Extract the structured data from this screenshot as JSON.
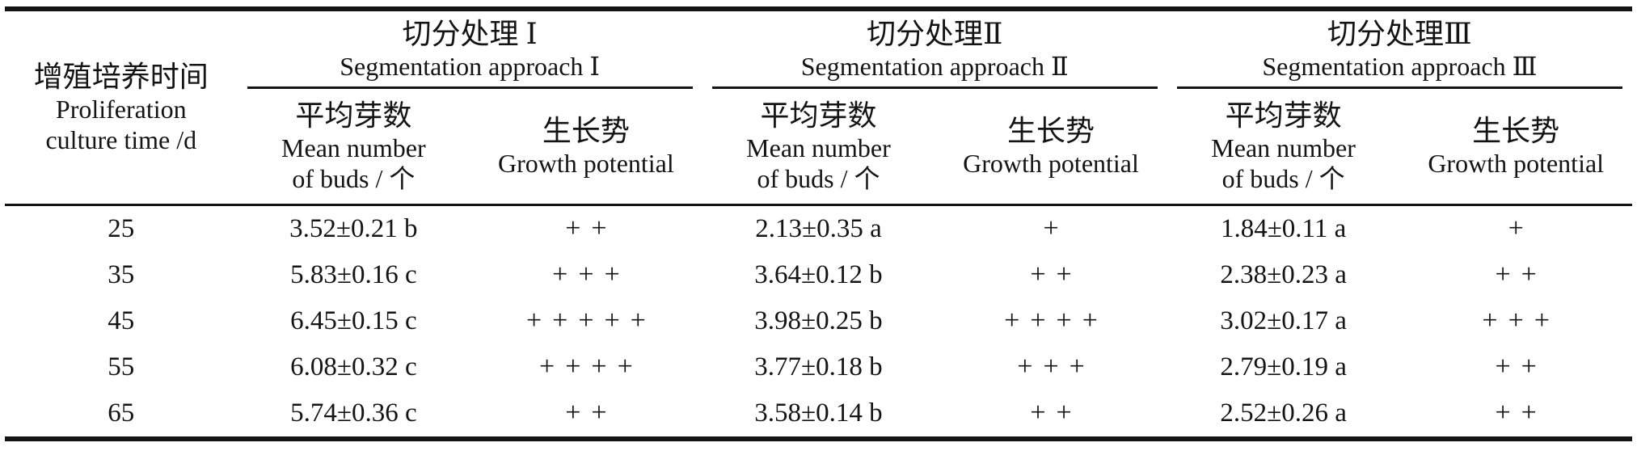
{
  "table": {
    "corner": {
      "zh": "增殖培养时间",
      "en_line1": "Proliferation",
      "en_line2": "culture time /d"
    },
    "groups": [
      {
        "zh": "切分处理 Ⅰ",
        "en": "Segmentation approach Ⅰ"
      },
      {
        "zh": "切分处理Ⅱ",
        "en": "Segmentation approach Ⅱ"
      },
      {
        "zh": "切分处理Ⅲ",
        "en": "Segmentation approach Ⅲ"
      }
    ],
    "subheaders": {
      "buds": {
        "zh": "平均芽数",
        "en_line1": "Mean number",
        "en_line2": "of buds / 个"
      },
      "growth": {
        "zh": "生长势",
        "en": "Growth potential"
      }
    },
    "rows": [
      {
        "time": "25",
        "b1": "3.52±0.21 b",
        "g1": "++",
        "b2": "2.13±0.35 a",
        "g2": "+",
        "b3": "1.84±0.11 a",
        "g3": "+"
      },
      {
        "time": "35",
        "b1": "5.83±0.16 c",
        "g1": "+++",
        "b2": "3.64±0.12 b",
        "g2": "++",
        "b3": "2.38±0.23 a",
        "g3": "++"
      },
      {
        "time": "45",
        "b1": "6.45±0.15 c",
        "g1": "+++++",
        "b2": "3.98±0.25 b",
        "g2": "++++",
        "b3": "3.02±0.17 a",
        "g3": "+++"
      },
      {
        "time": "55",
        "b1": "6.08±0.32 c",
        "g1": "++++",
        "b2": "3.77±0.18 b",
        "g2": "+++",
        "b3": "2.79±0.19 a",
        "g3": "++"
      },
      {
        "time": "65",
        "b1": "5.74±0.36 c",
        "g1": "++",
        "b2": "3.58±0.14 b",
        "g2": "++",
        "b3": "2.52±0.26 a",
        "g3": "++"
      }
    ],
    "text_color": "#141414",
    "background_color": "#ffffff"
  }
}
